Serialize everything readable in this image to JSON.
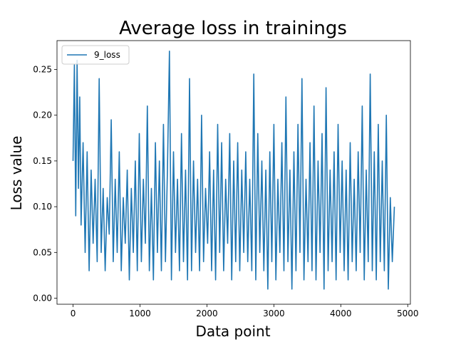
{
  "chart_data": {
    "type": "line",
    "title": "Average loss in trainings",
    "xlabel": "Data point",
    "ylabel": "Loss value",
    "xlim": [
      -240,
      5040
    ],
    "ylim": [
      -0.0066,
      0.2815
    ],
    "xticks": [
      0,
      1000,
      2000,
      3000,
      4000,
      5000
    ],
    "xtick_labels": [
      "0",
      "1000",
      "2000",
      "3000",
      "4000",
      "5000"
    ],
    "yticks": [
      0.0,
      0.05,
      0.1,
      0.15,
      0.2,
      0.25
    ],
    "ytick_labels": [
      "0.00",
      "0.05",
      "0.10",
      "0.15",
      "0.20",
      "0.25"
    ],
    "grid": false,
    "legend": {
      "position": "top-left"
    },
    "series": [
      {
        "name": "9_loss",
        "color": "#1f77b4",
        "x": [
          0,
          20,
          40,
          60,
          80,
          100,
          120,
          150,
          180,
          210,
          240,
          270,
          300,
          330,
          360,
          390,
          420,
          450,
          480,
          510,
          540,
          570,
          600,
          630,
          660,
          690,
          720,
          750,
          780,
          810,
          840,
          870,
          900,
          930,
          960,
          990,
          1020,
          1050,
          1080,
          1110,
          1140,
          1170,
          1200,
          1230,
          1260,
          1290,
          1320,
          1350,
          1380,
          1410,
          1440,
          1470,
          1500,
          1530,
          1560,
          1590,
          1620,
          1650,
          1680,
          1710,
          1740,
          1770,
          1800,
          1830,
          1860,
          1890,
          1920,
          1950,
          1980,
          2010,
          2040,
          2070,
          2100,
          2130,
          2160,
          2190,
          2220,
          2250,
          2280,
          2310,
          2340,
          2370,
          2400,
          2430,
          2460,
          2490,
          2520,
          2550,
          2580,
          2610,
          2640,
          2670,
          2700,
          2730,
          2760,
          2790,
          2820,
          2850,
          2880,
          2910,
          2940,
          2970,
          3000,
          3030,
          3060,
          3090,
          3120,
          3150,
          3180,
          3210,
          3240,
          3270,
          3300,
          3330,
          3360,
          3390,
          3420,
          3450,
          3480,
          3510,
          3540,
          3570,
          3600,
          3630,
          3660,
          3690,
          3720,
          3750,
          3780,
          3810,
          3840,
          3870,
          3900,
          3930,
          3960,
          3990,
          4020,
          4050,
          4080,
          4110,
          4140,
          4170,
          4200,
          4230,
          4260,
          4290,
          4320,
          4350,
          4380,
          4410,
          4440,
          4470,
          4500,
          4530,
          4560,
          4590,
          4620,
          4650,
          4680,
          4710,
          4740,
          4770,
          4800
        ],
        "values": [
          0.15,
          0.255,
          0.09,
          0.26,
          0.12,
          0.22,
          0.08,
          0.17,
          0.05,
          0.16,
          0.03,
          0.14,
          0.06,
          0.13,
          0.04,
          0.24,
          0.05,
          0.12,
          0.03,
          0.11,
          0.07,
          0.195,
          0.04,
          0.13,
          0.05,
          0.16,
          0.03,
          0.11,
          0.06,
          0.14,
          0.02,
          0.12,
          0.05,
          0.15,
          0.03,
          0.18,
          0.04,
          0.13,
          0.06,
          0.21,
          0.03,
          0.12,
          0.02,
          0.17,
          0.05,
          0.15,
          0.03,
          0.19,
          0.04,
          0.14,
          0.27,
          0.02,
          0.16,
          0.05,
          0.13,
          0.03,
          0.18,
          0.04,
          0.14,
          0.02,
          0.24,
          0.03,
          0.15,
          0.05,
          0.13,
          0.03,
          0.2,
          0.04,
          0.12,
          0.06,
          0.16,
          0.03,
          0.14,
          0.02,
          0.19,
          0.05,
          0.17,
          0.03,
          0.13,
          0.06,
          0.18,
          0.02,
          0.15,
          0.04,
          0.17,
          0.03,
          0.14,
          0.05,
          0.16,
          0.04,
          0.13,
          0.03,
          0.245,
          0.02,
          0.18,
          0.05,
          0.15,
          0.03,
          0.14,
          0.01,
          0.16,
          0.04,
          0.19,
          0.02,
          0.13,
          0.05,
          0.17,
          0.03,
          0.22,
          0.04,
          0.14,
          0.01,
          0.16,
          0.03,
          0.19,
          0.05,
          0.24,
          0.02,
          0.13,
          0.04,
          0.17,
          0.03,
          0.21,
          0.02,
          0.15,
          0.05,
          0.18,
          0.01,
          0.23,
          0.03,
          0.14,
          0.04,
          0.16,
          0.02,
          0.19,
          0.05,
          0.15,
          0.03,
          0.14,
          0.02,
          0.17,
          0.04,
          0.13,
          0.03,
          0.16,
          0.05,
          0.21,
          0.02,
          0.14,
          0.04,
          0.245,
          0.03,
          0.16,
          0.02,
          0.19,
          0.04,
          0.15,
          0.03,
          0.2,
          0.01,
          0.11,
          0.04,
          0.1
        ]
      }
    ]
  }
}
